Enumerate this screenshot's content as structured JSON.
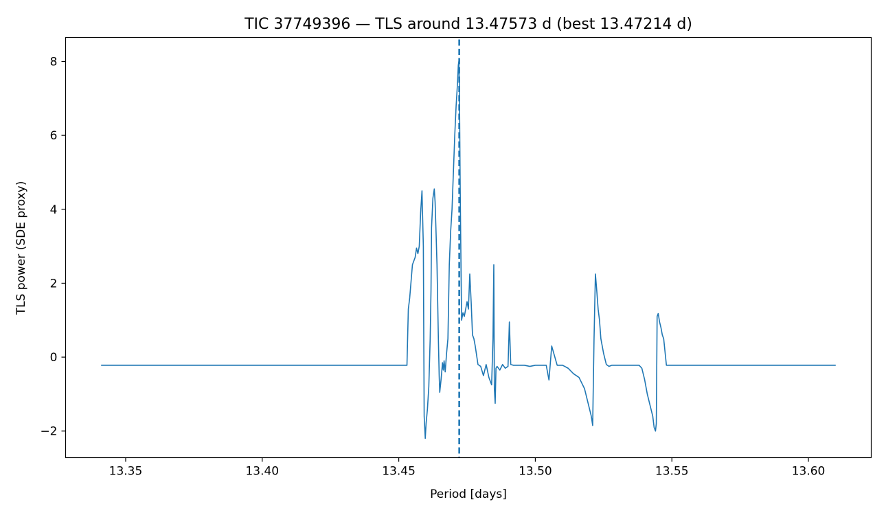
{
  "chart_data": {
    "type": "line",
    "title": "TIC 37749396 — TLS around 13.47573 d (best 13.47214 d)",
    "xlabel": "Period [days]",
    "ylabel": "TLS power (SDE proxy)",
    "xlim": [
      13.328,
      13.623
    ],
    "ylim": [
      -2.72,
      8.65
    ],
    "x_ticks": [
      13.35,
      13.4,
      13.45,
      13.5,
      13.55,
      13.6
    ],
    "x_tick_labels": [
      "13.35",
      "13.40",
      "13.45",
      "13.50",
      "13.55",
      "13.60"
    ],
    "y_ticks": [
      -2,
      0,
      2,
      4,
      6,
      8
    ],
    "y_tick_labels": [
      "−2",
      "0",
      "2",
      "4",
      "6",
      "8"
    ],
    "grid": false,
    "line_color": "#1f77b4",
    "best_period": 13.47214,
    "series": [
      {
        "x": [
          13.341,
          13.453,
          13.4535,
          13.454,
          13.455,
          13.456,
          13.4565,
          13.457,
          13.4575,
          13.458,
          13.4585,
          13.459,
          13.4593,
          13.4597,
          13.46,
          13.4605,
          13.461,
          13.4615,
          13.4618,
          13.462,
          13.4625,
          13.463,
          13.4633,
          13.4636,
          13.464,
          13.4645,
          13.4648,
          13.465,
          13.4655,
          13.466,
          13.4663,
          13.4666,
          13.467,
          13.4675,
          13.468,
          13.4685,
          13.469,
          13.4695,
          13.47,
          13.4705,
          13.471,
          13.4715,
          13.4718,
          13.472,
          13.4722,
          13.4725,
          13.473,
          13.4735,
          13.474,
          13.4745,
          13.475,
          13.4755,
          13.476,
          13.4765,
          13.477,
          13.4775,
          13.478,
          13.479,
          13.48,
          13.481,
          13.482,
          13.483,
          13.484,
          13.4845,
          13.4848,
          13.485,
          13.4853,
          13.4856,
          13.486,
          13.487,
          13.488,
          13.489,
          13.49,
          13.4905,
          13.491,
          13.492,
          13.494,
          13.496,
          13.498,
          13.5,
          13.502,
          13.504,
          13.505,
          13.506,
          13.508,
          13.51,
          13.512,
          13.514,
          13.516,
          13.518,
          13.5195,
          13.5205,
          13.521,
          13.5215,
          13.522,
          13.5225,
          13.523,
          13.5235,
          13.524,
          13.525,
          13.526,
          13.527,
          13.528,
          13.53,
          13.532,
          13.534,
          13.538,
          13.539,
          13.54,
          13.541,
          13.542,
          13.543,
          13.5435,
          13.544,
          13.5443,
          13.5446,
          13.545,
          13.5455,
          13.546,
          13.5465,
          13.547,
          13.548,
          13.61
        ],
        "y": [
          -0.22,
          -0.22,
          1.3,
          1.6,
          2.5,
          2.7,
          2.95,
          2.8,
          3.0,
          3.9,
          4.5,
          3.0,
          -1.6,
          -2.2,
          -1.8,
          -1.4,
          -0.8,
          0.5,
          1.8,
          3.5,
          4.3,
          4.55,
          4.2,
          3.5,
          2.5,
          0.5,
          -0.5,
          -0.95,
          -0.6,
          -0.15,
          -0.35,
          -0.1,
          -0.4,
          0.1,
          0.5,
          2.5,
          3.4,
          4.0,
          5.0,
          6.0,
          6.8,
          7.4,
          7.9,
          8.0,
          7.3,
          4.5,
          1.0,
          1.2,
          1.1,
          1.3,
          1.5,
          1.3,
          2.25,
          1.5,
          0.6,
          0.5,
          0.3,
          -0.2,
          -0.25,
          -0.5,
          -0.2,
          -0.55,
          -0.75,
          0.5,
          2.5,
          -0.85,
          -1.25,
          -0.3,
          -0.25,
          -0.35,
          -0.2,
          -0.3,
          -0.25,
          0.95,
          -0.2,
          -0.22,
          -0.22,
          -0.22,
          -0.25,
          -0.22,
          -0.22,
          -0.22,
          -0.62,
          0.3,
          -0.22,
          -0.22,
          -0.3,
          -0.45,
          -0.55,
          -0.85,
          -1.3,
          -1.6,
          -1.85,
          0.5,
          2.25,
          1.8,
          1.3,
          1.0,
          0.5,
          0.1,
          -0.2,
          -0.25,
          -0.22,
          -0.22,
          -0.22,
          -0.22,
          -0.22,
          -0.3,
          -0.6,
          -1.0,
          -1.3,
          -1.6,
          -1.9,
          -2.0,
          -1.8,
          1.1,
          1.18,
          0.95,
          0.8,
          0.6,
          0.5,
          -0.22,
          -0.22
        ]
      }
    ]
  }
}
